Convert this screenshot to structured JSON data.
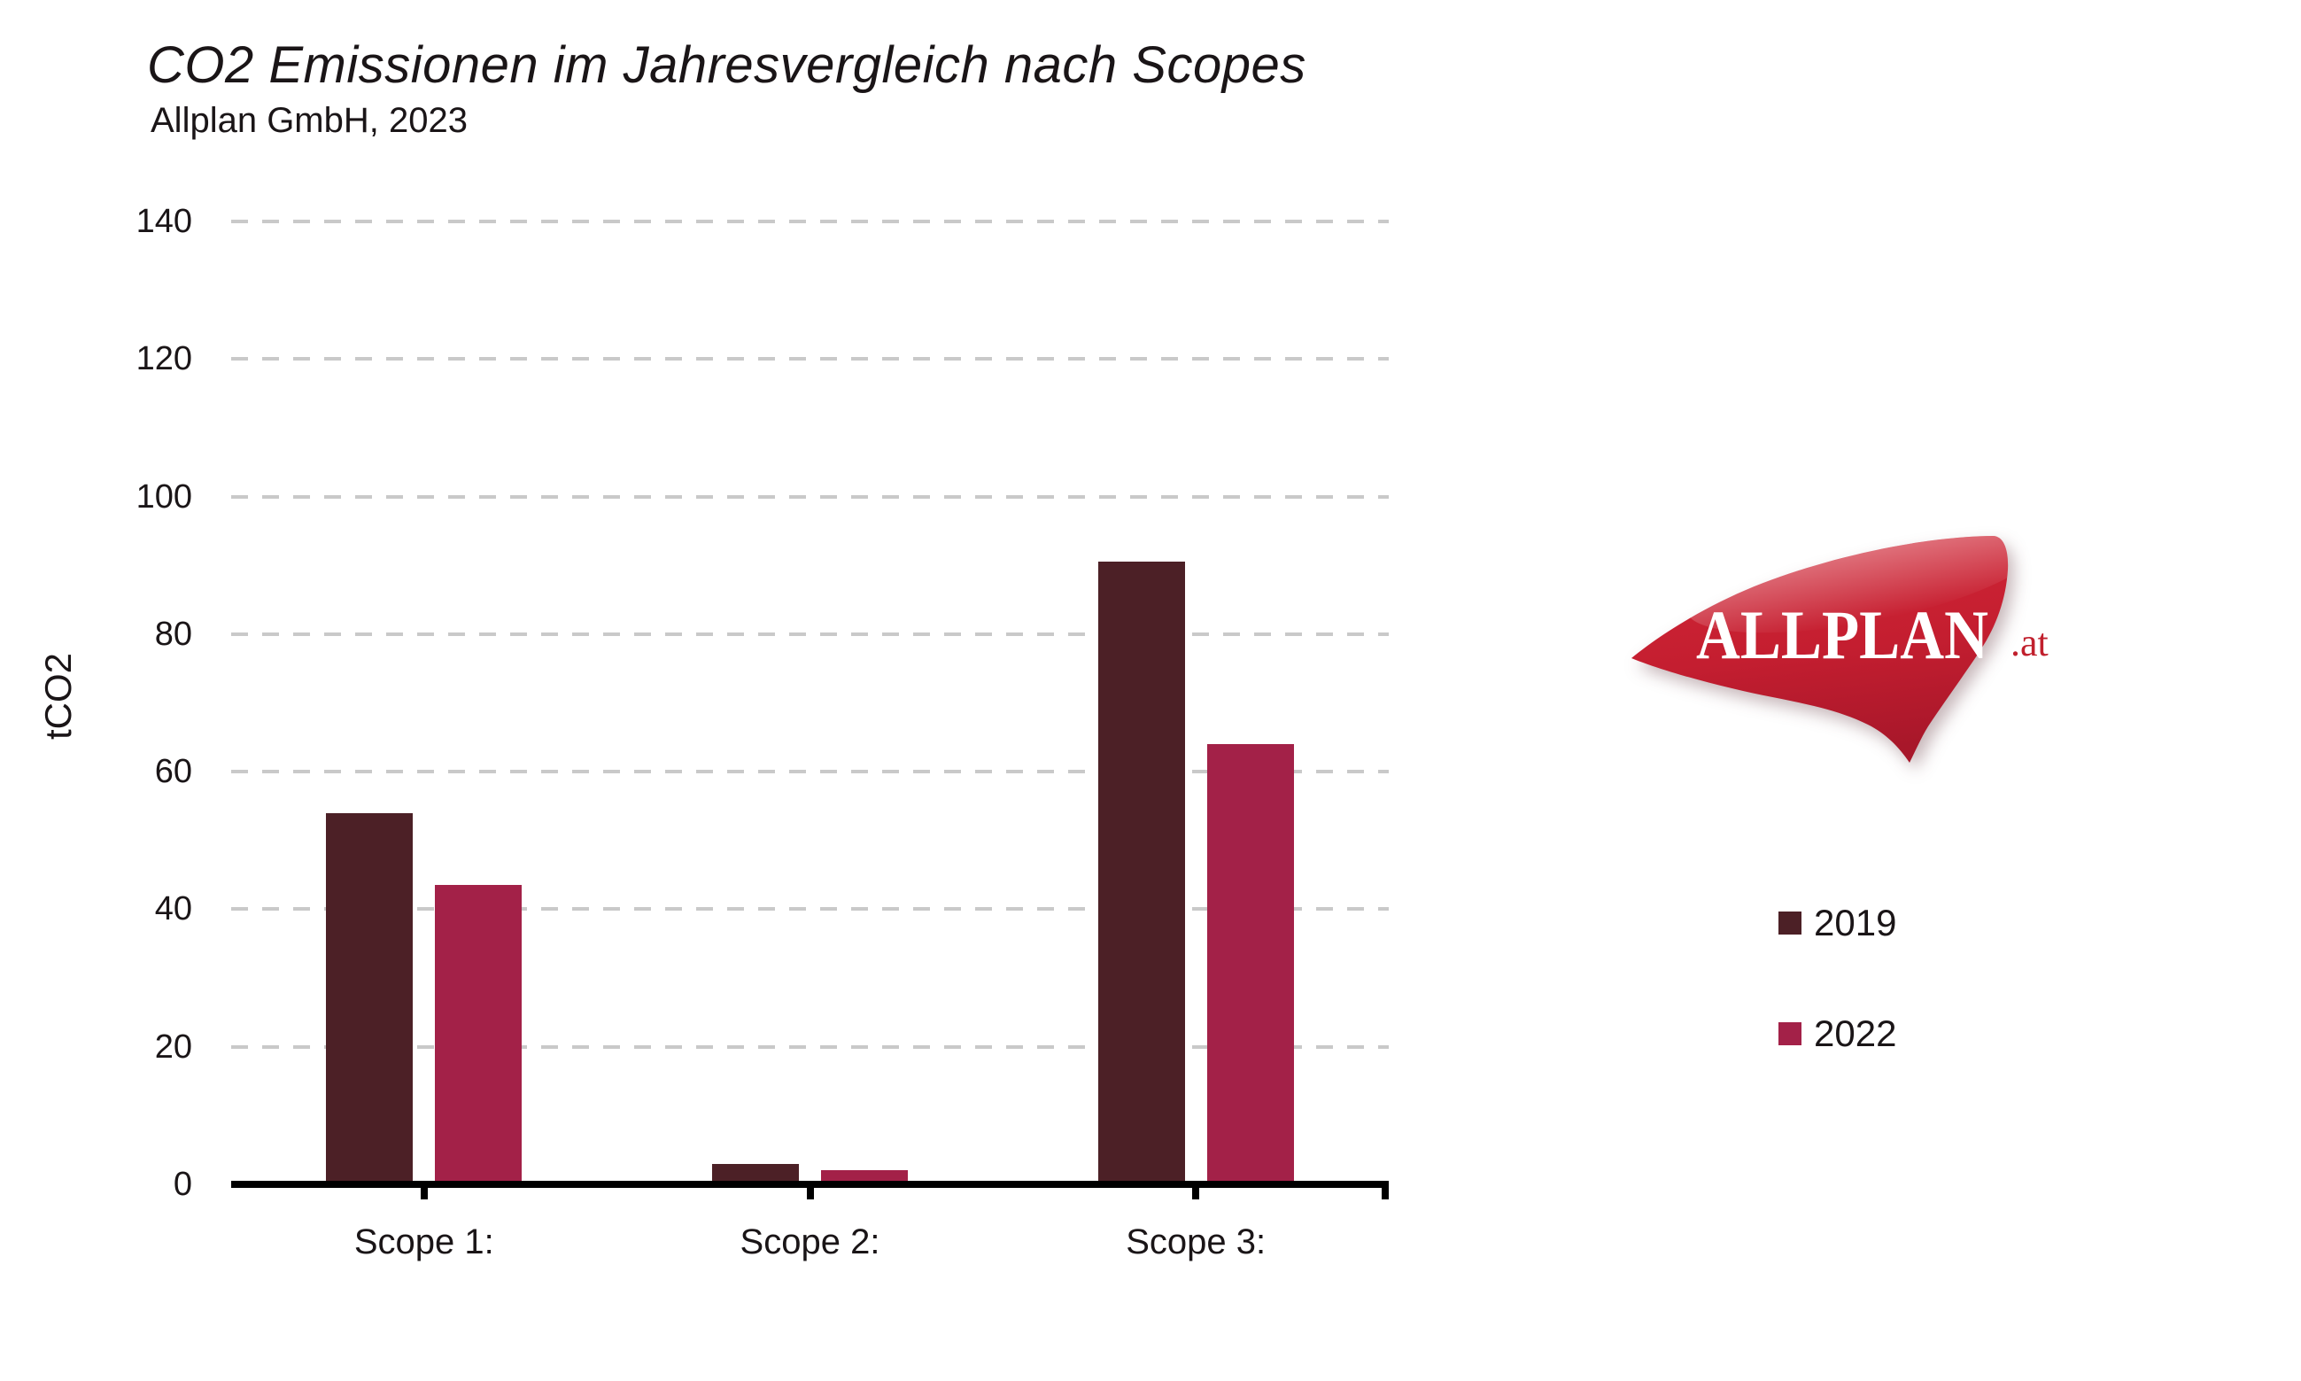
{
  "header": {
    "title": "CO2 Emissionen im Jahresvergleich nach Scopes",
    "subtitle": "Allplan GmbH, 2023"
  },
  "chart_data": {
    "type": "bar",
    "title": "CO2 Emissionen im Jahresvergleich nach Scopes",
    "subtitle": "Allplan GmbH, 2023",
    "categories": [
      "Scope 1:",
      "Scope 2:",
      "Scope 3:"
    ],
    "series": [
      {
        "name": "2019",
        "color": "#4c2026",
        "values": [
          54,
          3,
          90.5
        ]
      },
      {
        "name": "2022",
        "color": "#a32148",
        "values": [
          43.5,
          2,
          64
        ]
      }
    ],
    "xlabel": "",
    "ylabel": "tCO2",
    "ylim": [
      0,
      140
    ],
    "yticks": [
      0,
      20,
      40,
      60,
      80,
      100,
      120,
      140
    ],
    "grid": "horizontal-dashed",
    "gridline_color": "#c9c9c9",
    "legend_position": "right"
  },
  "legend": {
    "items": [
      {
        "label": "2019",
        "color": "#4c2026"
      },
      {
        "label": "2022",
        "color": "#a32148"
      }
    ]
  },
  "logo": {
    "text": "ALLPLAN",
    "suffix": ".at",
    "text_color": "#ffffff",
    "suffix_color": "#c1202d",
    "shape_color": "#c41e30"
  }
}
